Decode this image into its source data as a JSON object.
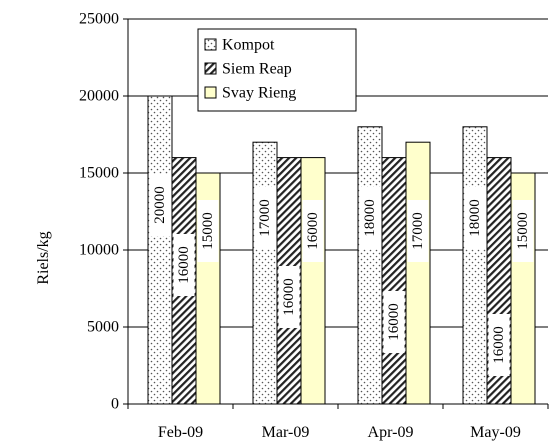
{
  "chart_data": {
    "type": "bar",
    "categories": [
      "Feb-09",
      "Mar-09",
      "Apr-09",
      "May-09"
    ],
    "series": [
      {
        "name": "Kompot",
        "values": [
          20000,
          17000,
          18000,
          18000
        ],
        "pattern": "dots",
        "fill": "#ffffff"
      },
      {
        "name": "Siem Reap",
        "values": [
          16000,
          16000,
          16000,
          16000
        ],
        "pattern": "diagonal-hatch",
        "fill": "#ffffff"
      },
      {
        "name": "Svay Rieng",
        "values": [
          15000,
          16000,
          17000,
          15000
        ],
        "pattern": "solid",
        "fill": "#ffffcc"
      }
    ],
    "ylabel": "Riels/kg",
    "xlabel": "",
    "ylim": [
      0,
      25000
    ],
    "yticks": [
      0,
      5000,
      10000,
      15000,
      20000,
      25000
    ],
    "grid": true,
    "legend": "top-center",
    "data_labels": {
      "rotation": "vertical",
      "texts": [
        [
          "20000",
          "17000",
          "18000",
          "18000"
        ],
        [
          "16000",
          "16000",
          "16000",
          "16000"
        ],
        [
          "15000",
          "16000",
          "17000",
          "15000"
        ]
      ]
    }
  }
}
